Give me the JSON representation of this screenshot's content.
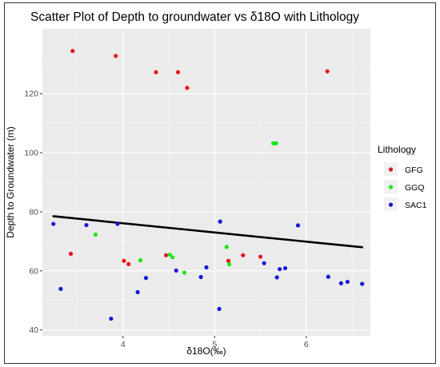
{
  "chart_data": {
    "type": "scatter",
    "title": "Scatter Plot of Depth to groundwater vs δ18O with Lithology",
    "xlabel": "δ18O(‰)",
    "ylabel": "Depth to Groundwater (m)",
    "xlim": [
      3.12,
      6.7
    ],
    "ylim": [
      38,
      142
    ],
    "xticks": [
      4,
      5,
      6
    ],
    "yticks": [
      40,
      60,
      80,
      100,
      120
    ],
    "grid": true,
    "legend_title": "Lithology",
    "legend_position": "right",
    "series": [
      {
        "name": "GFG",
        "color": "#e8141a",
        "points": [
          [
            3.45,
            134.5
          ],
          [
            3.92,
            132.8
          ],
          [
            4.36,
            127.3
          ],
          [
            4.6,
            127.3
          ],
          [
            4.7,
            122.0
          ],
          [
            6.23,
            127.6
          ],
          [
            3.43,
            65.8
          ],
          [
            4.01,
            63.4
          ],
          [
            4.06,
            62.3
          ],
          [
            4.47,
            65.3
          ],
          [
            5.15,
            63.4
          ],
          [
            5.31,
            65.3
          ],
          [
            5.5,
            64.8
          ]
        ]
      },
      {
        "name": "GGQ",
        "color": "#19e619",
        "points": [
          [
            3.7,
            72.3
          ],
          [
            4.19,
            63.6
          ],
          [
            4.51,
            65.5
          ],
          [
            4.54,
            64.6
          ],
          [
            4.67,
            59.4
          ],
          [
            5.13,
            68.1
          ],
          [
            5.16,
            62.2
          ],
          [
            5.64,
            103.2
          ],
          [
            5.67,
            103.2
          ]
        ]
      },
      {
        "name": "SAC1",
        "color": "#1616d6",
        "points": [
          [
            3.24,
            75.9
          ],
          [
            3.32,
            53.9
          ],
          [
            3.6,
            75.5
          ],
          [
            3.87,
            43.8
          ],
          [
            3.94,
            75.9
          ],
          [
            4.16,
            52.8
          ],
          [
            4.25,
            57.6
          ],
          [
            4.58,
            60.1
          ],
          [
            4.85,
            57.9
          ],
          [
            4.91,
            61.2
          ],
          [
            5.05,
            47.1
          ],
          [
            5.06,
            76.7
          ],
          [
            5.54,
            62.6
          ],
          [
            5.68,
            57.8
          ],
          [
            5.71,
            60.6
          ],
          [
            5.77,
            60.9
          ],
          [
            5.91,
            75.4
          ],
          [
            6.24,
            58.0
          ],
          [
            6.38,
            55.8
          ],
          [
            6.45,
            56.3
          ],
          [
            6.61,
            55.6
          ]
        ]
      }
    ],
    "trendline": {
      "color": "#000000",
      "x": [
        3.24,
        6.61
      ],
      "y": [
        78.5,
        68.0
      ]
    }
  }
}
